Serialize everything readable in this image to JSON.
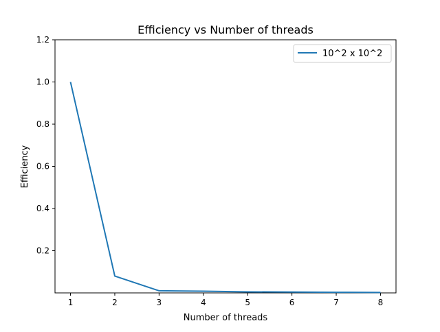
{
  "chart_data": {
    "type": "line",
    "title": "Efficiency vs Number of threads",
    "xlabel": "Number of threads",
    "ylabel": "Efficiency",
    "x": [
      1,
      2,
      3,
      4,
      5,
      6,
      7,
      8
    ],
    "series": [
      {
        "name": "10^2 x 10^2",
        "color": "#1f77b4",
        "values": [
          1.0,
          0.08,
          0.01,
          0.008,
          0.005,
          0.004,
          0.003,
          0.002
        ]
      }
    ],
    "xlim": [
      0.65,
      8.35
    ],
    "ylim": [
      0.0,
      1.2
    ],
    "xticks": [
      1,
      2,
      3,
      4,
      5,
      6,
      7,
      8
    ],
    "xtick_labels": [
      "1",
      "2",
      "3",
      "4",
      "5",
      "6",
      "7",
      "8"
    ],
    "yticks": [
      0.2,
      0.4,
      0.6,
      0.8,
      1.0,
      1.2
    ],
    "ytick_labels": [
      "0.2",
      "0.4",
      "0.6",
      "0.8",
      "1.0",
      "1.2"
    ],
    "grid": false,
    "legend_position": "top-right"
  }
}
